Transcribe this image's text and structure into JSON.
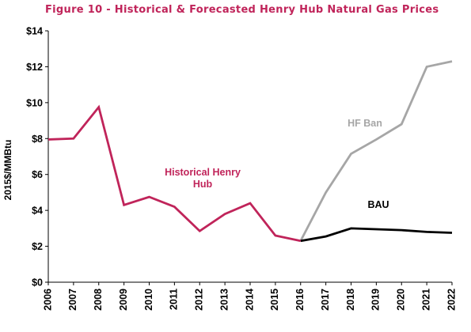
{
  "chart_data": {
    "type": "line",
    "title": "Figure 10 - Historical & Forecasted Henry Hub Natural Gas Prices",
    "ylabel": "2015$/MMBtu",
    "xlabel": "",
    "ylim": [
      0,
      14
    ],
    "y_ticks": [
      "$0",
      "$2",
      "$4",
      "$6",
      "$8",
      "$10",
      "$12",
      "$14"
    ],
    "categories": [
      "2006",
      "2007",
      "2008",
      "2009",
      "2010",
      "2011",
      "2012",
      "2013",
      "2014",
      "2015",
      "2016",
      "2017",
      "2018",
      "2019",
      "2020",
      "2021",
      "2022"
    ],
    "grid": false,
    "series": [
      {
        "name": "Historical Henry Hub",
        "color": "#c0245a",
        "values": [
          7.95,
          8.0,
          9.75,
          4.3,
          4.75,
          4.2,
          2.85,
          3.8,
          4.4,
          2.6,
          2.3,
          null,
          null,
          null,
          null,
          null,
          null
        ]
      },
      {
        "name": "HF Ban",
        "color": "#a6a6a6",
        "values": [
          null,
          null,
          null,
          null,
          null,
          null,
          null,
          null,
          null,
          null,
          2.3,
          5.0,
          7.15,
          7.95,
          8.8,
          12.0,
          12.3
        ]
      },
      {
        "name": "BAU",
        "color": "#000000",
        "values": [
          null,
          null,
          null,
          null,
          null,
          null,
          null,
          null,
          null,
          null,
          2.3,
          2.55,
          3.0,
          2.95,
          2.9,
          2.8,
          2.75
        ]
      }
    ],
    "annotations": [
      {
        "series": "Historical Henry Hub",
        "lines": [
          "Historical Henry",
          "Hub"
        ],
        "color": "#c0245a"
      },
      {
        "series": "HF Ban",
        "lines": [
          "HF Ban"
        ],
        "color": "#a6a6a6"
      },
      {
        "series": "BAU",
        "lines": [
          "BAU"
        ],
        "color": "#000000"
      }
    ],
    "title_color": "#c0245a"
  }
}
